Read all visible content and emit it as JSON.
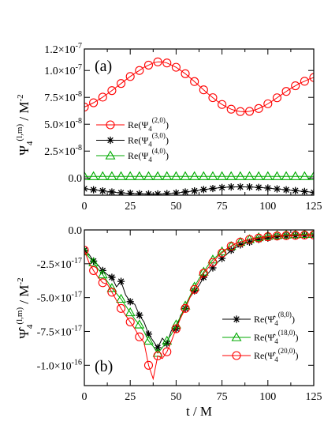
{
  "chart_data": [
    {
      "type": "line",
      "panel_label": "(a)",
      "ylabel": {
        "main": "Ψ",
        "sub": "4",
        "sup": "(l,m)",
        "tail": " / M",
        "tailsup": "-2"
      },
      "xlim": [
        0,
        125
      ],
      "ylim": [
        -1.6e-08,
        1.2e-07
      ],
      "x_ticks": [
        {
          "v": 0,
          "t": "0"
        },
        {
          "v": 25,
          "t": "25"
        },
        {
          "v": 50,
          "t": "50"
        },
        {
          "v": 75,
          "t": "75"
        },
        {
          "v": 100,
          "t": "100"
        },
        {
          "v": 125,
          "t": "125"
        }
      ],
      "y_ticks": [
        {
          "v": 0,
          "m": "0.0",
          "e": ""
        },
        {
          "v": 2.5e-08,
          "m": "2.5×10",
          "e": "-8"
        },
        {
          "v": 5e-08,
          "m": "5.0×10",
          "e": "-8"
        },
        {
          "v": 7.5e-08,
          "m": "7.5×10",
          "e": "-8"
        },
        {
          "v": 1e-07,
          "m": "1.0×10",
          "e": "-7"
        },
        {
          "v": 1.2e-07,
          "m": "1.2×10",
          "e": "-7"
        }
      ],
      "legend_position": "center-left",
      "grid": false,
      "series": [
        {
          "name": "Re(Ψ",
          "name_sub": "4",
          "name_sup": "(2,0)",
          "name_tail": ")",
          "color": "#ff0000",
          "marker": "circle",
          "x": [
            0,
            2.5,
            5,
            7.5,
            10,
            12.5,
            15,
            17.5,
            20,
            22.5,
            25,
            27.5,
            30,
            32.5,
            35,
            37.5,
            40,
            42.5,
            45,
            47.5,
            50,
            52.5,
            55,
            57.5,
            60,
            62.5,
            65,
            67.5,
            70,
            72.5,
            75,
            77.5,
            80,
            82.5,
            85,
            87.5,
            90,
            92.5,
            95,
            97.5,
            100,
            102.5,
            105,
            107.5,
            110,
            112.5,
            115,
            117.5,
            120,
            122.5,
            125
          ],
          "y": [
            6.6e-08,
            6.79e-08,
            7e-08,
            7.25e-08,
            7.52e-08,
            7.82e-08,
            8.13e-08,
            8.46e-08,
            8.79e-08,
            9.12e-08,
            9.44e-08,
            9.74e-08,
            1e-07,
            1.03e-07,
            1.05e-07,
            1.07e-07,
            1.08e-07,
            1.08e-07,
            1.07e-07,
            1.05e-07,
            1.03e-07,
            1e-07,
            9.7e-08,
            9.34e-08,
            8.97e-08,
            8.58e-08,
            8.2e-08,
            7.82e-08,
            7.47e-08,
            7.14e-08,
            6.84e-08,
            6.6e-08,
            6.4e-08,
            6.26e-08,
            6.18e-08,
            6.16e-08,
            6.2e-08,
            6.3e-08,
            6.46e-08,
            6.66e-08,
            6.9e-08,
            7.17e-08,
            7.46e-08,
            7.76e-08,
            8.05e-08,
            8.33e-08,
            8.58e-08,
            8.82e-08,
            9e-08,
            9.2e-08,
            9.35e-08
          ]
        },
        {
          "name": "Re(Ψ",
          "name_sub": "4",
          "name_sup": "(3,0)",
          "name_tail": ")",
          "color": "#000000",
          "marker": "star",
          "x": [
            0,
            2.5,
            5,
            7.5,
            10,
            12.5,
            15,
            17.5,
            20,
            22.5,
            25,
            27.5,
            30,
            32.5,
            35,
            37.5,
            40,
            42.5,
            45,
            47.5,
            50,
            52.5,
            55,
            57.5,
            60,
            62.5,
            65,
            67.5,
            70,
            72.5,
            75,
            77.5,
            80,
            82.5,
            85,
            87.5,
            90,
            92.5,
            95,
            97.5,
            100,
            102.5,
            105,
            107.5,
            110,
            112.5,
            115,
            117.5,
            120,
            122.5,
            125
          ],
          "y": [
            -1e-08,
            -1.05e-08,
            -1.1e-08,
            -1.15e-08,
            -1.2e-08,
            -1.25e-08,
            -1.3e-08,
            -1.35e-08,
            -1.38e-08,
            -1.41e-08,
            -1.43e-08,
            -1.45e-08,
            -1.47e-08,
            -1.48e-08,
            -1.49e-08,
            -1.5e-08,
            -1.49e-08,
            -1.48e-08,
            -1.46e-08,
            -1.43e-08,
            -1.4e-08,
            -1.35e-08,
            -1.3e-08,
            -1.25e-08,
            -1.2e-08,
            -1.14e-08,
            -1.08e-08,
            -1.03e-08,
            -9.8e-09,
            -9.3e-09,
            -8.9e-09,
            -8.6e-09,
            -8.4e-09,
            -8.3e-09,
            -8.3e-09,
            -8.3e-09,
            -8.4e-09,
            -8.6e-09,
            -8.8e-09,
            -9.1e-09,
            -9.4e-09,
            -9.8e-09,
            -1.02e-08,
            -1.06e-08,
            -1.1e-08,
            -1.14e-08,
            -1.18e-08,
            -1.22e-08,
            -1.26e-08,
            -1.3e-08,
            -1.35e-08
          ]
        },
        {
          "name": "Re(Ψ",
          "name_sub": "4",
          "name_sup": "(4,0)",
          "name_tail": ")",
          "color": "#00aa00",
          "marker": "triangle",
          "x": [
            0,
            2.5,
            5,
            7.5,
            10,
            12.5,
            15,
            17.5,
            20,
            22.5,
            25,
            27.5,
            30,
            32.5,
            35,
            37.5,
            40,
            42.5,
            45,
            47.5,
            50,
            52.5,
            55,
            57.5,
            60,
            62.5,
            65,
            67.5,
            70,
            72.5,
            75,
            77.5,
            80,
            82.5,
            85,
            87.5,
            90,
            92.5,
            95,
            97.5,
            100,
            102.5,
            105,
            107.5,
            110,
            112.5,
            115,
            117.5,
            120,
            122.5,
            125
          ],
          "y": [
            1.5e-09,
            1.5e-09,
            1.5e-09,
            1.5e-09,
            1.5e-09,
            1.5e-09,
            1.5e-09,
            1.5e-09,
            1.5e-09,
            1.5e-09,
            1.5e-09,
            1.5e-09,
            1.5e-09,
            1.5e-09,
            1.5e-09,
            1.5e-09,
            1.5e-09,
            1.5e-09,
            1.5e-09,
            1.5e-09,
            1.5e-09,
            1.5e-09,
            1.5e-09,
            1.5e-09,
            1.5e-09,
            1.5e-09,
            1.5e-09,
            1.5e-09,
            1.5e-09,
            1.5e-09,
            1.5e-09,
            1.5e-09,
            1.5e-09,
            1.5e-09,
            1.5e-09,
            1.5e-09,
            1.5e-09,
            1.5e-09,
            1.5e-09,
            1.5e-09,
            1.5e-09,
            1.5e-09,
            1.5e-09,
            1.5e-09,
            1.5e-09,
            1.5e-09,
            1.5e-09,
            1.5e-09,
            1.5e-09,
            1.5e-09,
            1.5e-09
          ]
        }
      ]
    },
    {
      "type": "line",
      "panel_label": "(b)",
      "ylabel": {
        "main": "Ψ̂",
        "sub": "4",
        "sup": "(l,m)",
        "tail": " / M",
        "tailsup": "-2"
      },
      "xlabel": "t / M",
      "xlim": [
        0,
        125
      ],
      "ylim": [
        -1.15e-16,
        0
      ],
      "x_ticks": [
        {
          "v": 0,
          "t": "0"
        },
        {
          "v": 25,
          "t": "25"
        },
        {
          "v": 50,
          "t": "50"
        },
        {
          "v": 75,
          "t": "75"
        },
        {
          "v": 100,
          "t": "100"
        },
        {
          "v": 125,
          "t": "125"
        }
      ],
      "y_ticks": [
        {
          "v": 0,
          "m": "0.0",
          "e": ""
        },
        {
          "v": -2.5e-17,
          "m": "-2.5×10",
          "e": "-17"
        },
        {
          "v": -5e-17,
          "m": "-5.0×10",
          "e": "-17"
        },
        {
          "v": -7.5e-17,
          "m": "-7.5×10",
          "e": "-17"
        },
        {
          "v": -1e-16,
          "m": "-1.0×10",
          "e": "-16"
        }
      ],
      "legend_position": "center-right",
      "grid": false,
      "series": [
        {
          "name": "Re(Ψ̂",
          "name_sub": "4",
          "name_sup": "(8,0)",
          "name_tail": ")",
          "color": "#000000",
          "marker": "star",
          "x": [
            0,
            2.5,
            5,
            7.5,
            10,
            12.5,
            15,
            17.5,
            20,
            22.5,
            25,
            27.5,
            30,
            32.5,
            35,
            37.5,
            40,
            42.5,
            45,
            47.5,
            50,
            52.5,
            55,
            57.5,
            60,
            62.5,
            65,
            67.5,
            70,
            72.5,
            75,
            77.5,
            80,
            82.5,
            85,
            87.5,
            90,
            92.5,
            95,
            97.5,
            100,
            102.5,
            105,
            107.5,
            110,
            112.5,
            115,
            117.5,
            120,
            122.5,
            125
          ],
          "y": [
            -1.5e-17,
            -1.8e-17,
            -2.3e-17,
            -2.6e-17,
            -3e-17,
            -3.3e-17,
            -3.5e-17,
            -4.2e-17,
            -3.8e-17,
            -4.8e-17,
            -5.3e-17,
            -5.5e-17,
            -6.3e-17,
            -6.8e-17,
            -7.7e-17,
            -8.2e-17,
            -8.7e-17,
            -8e-17,
            -8.4e-17,
            -7.4e-17,
            -7.3e-17,
            -6.3e-17,
            -5.8e-17,
            -5e-17,
            -4.5e-17,
            -4.1e-17,
            -3.5e-17,
            -3.2e-17,
            -2.8e-17,
            -2.4e-17,
            -2.1e-17,
            -1.8e-17,
            -1.5e-17,
            -1.3e-17,
            -1.1e-17,
            -1e-17,
            -9e-18,
            -8e-18,
            -7e-18,
            -6.5e-18,
            -6e-18,
            -5.5e-18,
            -5e-18,
            -4.8e-18,
            -4.5e-18,
            -4.4e-18,
            -4.2e-18,
            -4.1e-18,
            -4e-18,
            -4e-18,
            -3.9e-18
          ]
        },
        {
          "name": "Re(Ψ̂",
          "name_sub": "4",
          "name_sup": "(18,0)",
          "name_tail": ")",
          "color": "#00aa00",
          "marker": "triangle",
          "x": [
            0,
            2.5,
            5,
            7.5,
            10,
            12.5,
            15,
            17.5,
            20,
            22.5,
            25,
            27.5,
            30,
            32.5,
            35,
            37.5,
            40,
            42.5,
            45,
            47.5,
            50,
            52.5,
            55,
            57.5,
            60,
            62.5,
            65,
            67.5,
            70,
            72.5,
            75,
            77.5,
            80,
            82.5,
            85,
            87.5,
            90,
            92.5,
            95,
            97.5,
            100,
            102.5,
            105,
            107.5,
            110,
            112.5,
            115,
            117.5,
            120,
            122.5,
            125
          ],
          "y": [
            -1.6e-17,
            -2e-17,
            -2.4e-17,
            -2.9e-17,
            -3.3e-17,
            -3.8e-17,
            -4.3e-17,
            -4.7e-17,
            -5.1e-17,
            -5.6e-17,
            -6.1e-17,
            -6.6e-17,
            -7e-17,
            -7.5e-17,
            -8.2e-17,
            -8.6e-17,
            -9.1e-17,
            -8.7e-17,
            -8.2e-17,
            -7.7e-17,
            -7e-17,
            -6.4e-17,
            -5.6e-17,
            -4.9e-17,
            -4.2e-17,
            -3.6e-17,
            -3.1e-17,
            -2.6e-17,
            -2.2e-17,
            -1.9e-17,
            -1.6e-17,
            -1.4e-17,
            -1.2e-17,
            -1e-17,
            -9e-18,
            -8e-18,
            -7e-18,
            -6e-18,
            -5.5e-18,
            -5e-18,
            -4.5e-18,
            -4.2e-18,
            -4e-18,
            -3.8e-18,
            -3.6e-18,
            -3.5e-18,
            -3.4e-18,
            -3.3e-18,
            -3.2e-18,
            -3.1e-18,
            -3e-18
          ]
        },
        {
          "name": "Re(Ψ̂",
          "name_sub": "4",
          "name_sup": "(20,0)",
          "name_tail": ")",
          "color": "#ff0000",
          "marker": "circle",
          "x": [
            0,
            2.5,
            5,
            7.5,
            10,
            12.5,
            15,
            17.5,
            20,
            22.5,
            25,
            27.5,
            30,
            32.5,
            35,
            37.5,
            40,
            42.5,
            45,
            47.5,
            50,
            52.5,
            55,
            57.5,
            60,
            62.5,
            65,
            67.5,
            70,
            72.5,
            75,
            77.5,
            80,
            82.5,
            85,
            87.5,
            90,
            92.5,
            95,
            97.5,
            100,
            102.5,
            105,
            107.5,
            110,
            112.5,
            115,
            117.5,
            120,
            122.5,
            125
          ],
          "y": [
            -1.5e-17,
            -2.4e-17,
            -3e-17,
            -3.5e-17,
            -3.9e-17,
            -4e-17,
            -4.6e-17,
            -5.2e-17,
            -5.8e-17,
            -6.3e-17,
            -6.8e-17,
            -7.3e-17,
            -7.9e-17,
            -8.3e-17,
            -1e-16,
            -1.1e-16,
            -9.3e-17,
            -9.5e-17,
            -9e-17,
            -8.2e-17,
            -7.3e-17,
            -6.5e-17,
            -5.8e-17,
            -5e-17,
            -4.4e-17,
            -3.8e-17,
            -3.2e-17,
            -2.8e-17,
            -2.4e-17,
            -2e-17,
            -1.7e-17,
            -1.4e-17,
            -1.2e-17,
            -1e-17,
            -9e-18,
            -8e-18,
            -7e-18,
            -6.5e-18,
            -6e-18,
            -5.5e-18,
            -5e-18,
            -4.7e-18,
            -4.5e-18,
            -4.3e-18,
            -4.2e-18,
            -4.1e-18,
            -4e-18,
            -3.9e-18,
            -3.8e-18,
            -3.8e-18,
            -3.7e-18
          ]
        }
      ]
    }
  ]
}
